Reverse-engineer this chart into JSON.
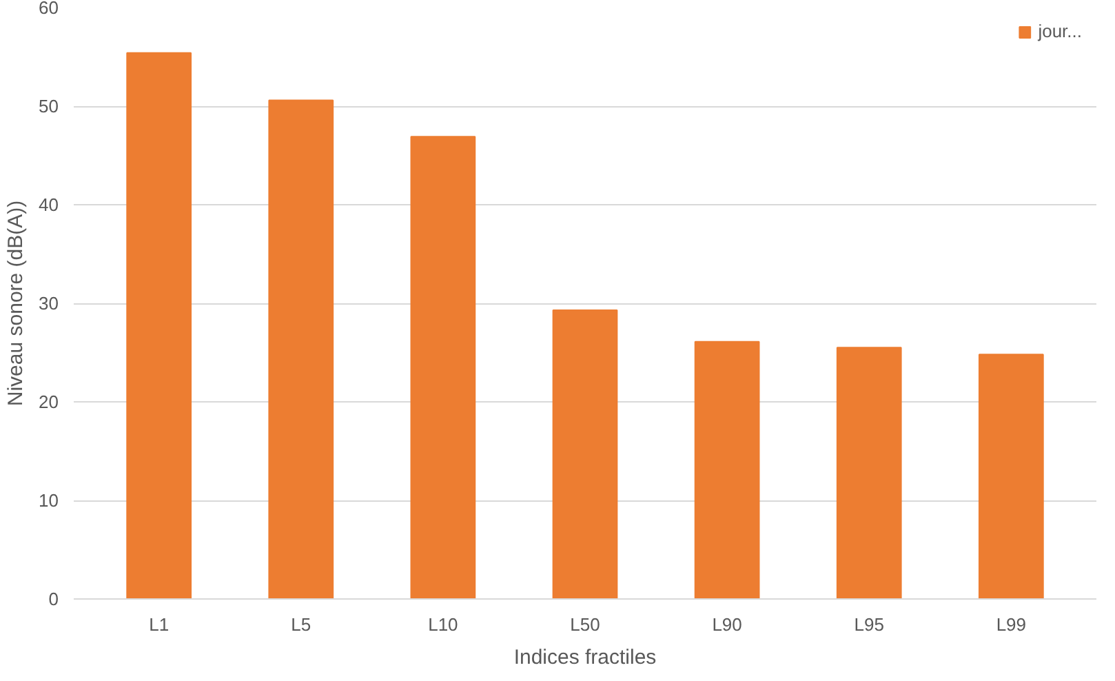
{
  "chart_data": {
    "type": "bar",
    "xlabel": "Indices fractiles",
    "ylabel": "Niveau sonore (dB(A))",
    "categories": [
      "L1",
      "L5",
      "L10",
      "L50",
      "L90",
      "L95",
      "L99"
    ],
    "series": [
      {
        "name": "jour...",
        "color": "#ed7d31",
        "values": [
          55.4,
          50.6,
          46.9,
          29.3,
          26.1,
          25.5,
          24.8
        ]
      }
    ],
    "ylim": [
      0,
      60
    ],
    "yticks": [
      0,
      10,
      20,
      30,
      40,
      50,
      60
    ],
    "grid": "y",
    "legend": "top right"
  }
}
